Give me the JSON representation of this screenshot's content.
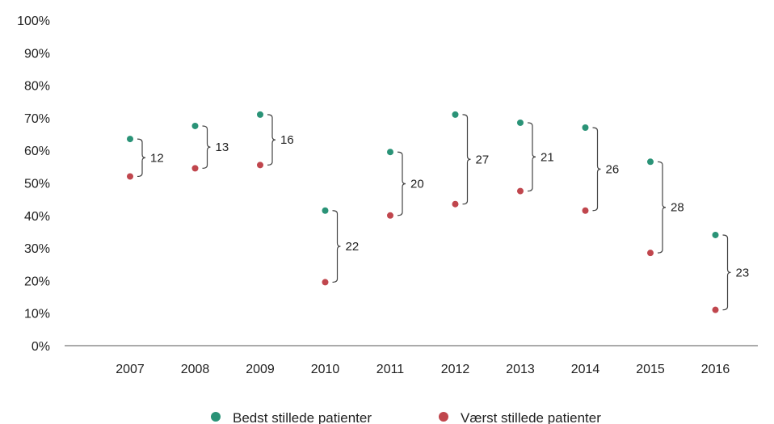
{
  "chart_data": {
    "type": "scatter",
    "categories": [
      "2007",
      "2008",
      "2009",
      "2010",
      "2011",
      "2012",
      "2013",
      "2014",
      "2015",
      "2016"
    ],
    "series": [
      {
        "name": "Bedst stillede patienter",
        "color": "#2a9377",
        "values": [
          63.5,
          67.5,
          71,
          41.5,
          59.5,
          71,
          68.5,
          67,
          56.5,
          34
        ]
      },
      {
        "name": "Værst stillede patienter",
        "color": "#c0464d",
        "values": [
          52,
          54.5,
          55.5,
          19.5,
          40,
          43.5,
          47.5,
          41.5,
          28.5,
          11
        ]
      }
    ],
    "gaps": [
      "12",
      "13",
      "16",
      "22",
      "20",
      "27",
      "21",
      "26",
      "28",
      "23"
    ],
    "y_ticks": [
      "0%",
      "10%",
      "20%",
      "30%",
      "40%",
      "50%",
      "60%",
      "70%",
      "80%",
      "90%",
      "100%"
    ],
    "ylim": [
      0,
      100
    ],
    "legend_position": "bottom"
  }
}
